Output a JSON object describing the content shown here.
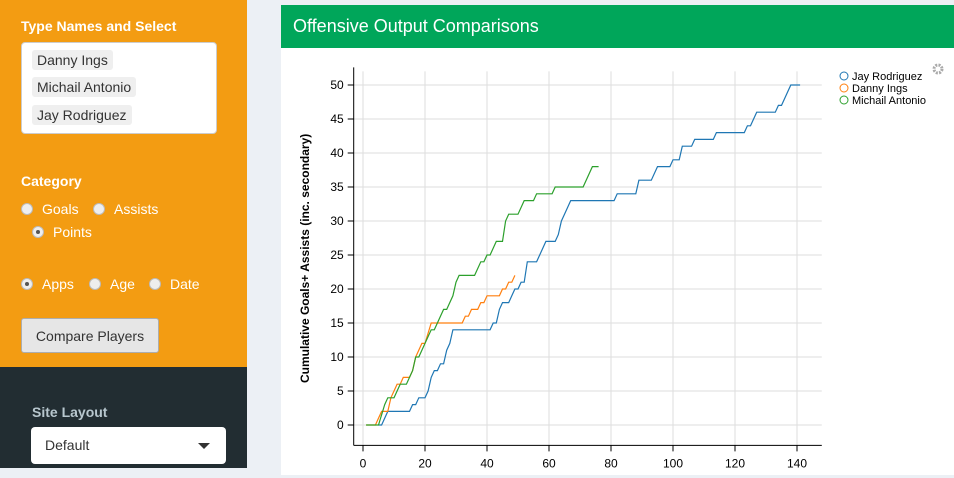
{
  "sidebar": {
    "select_label": "Type Names and Select",
    "selected_players": [
      "Danny Ings",
      "Michail Antonio",
      "Jay Rodriguez"
    ],
    "category_label": "Category",
    "category_options": [
      "Goals",
      "Assists",
      "Points"
    ],
    "category_selected": "Points",
    "axis_options": [
      "Apps",
      "Age",
      "Date"
    ],
    "axis_selected": "Apps",
    "compare_button": "Compare Players",
    "site_layout_label": "Site Layout",
    "site_layout_value": "Default"
  },
  "box": {
    "title": "Offensive Output Comparisons"
  },
  "chart_data": {
    "type": "line",
    "title": "",
    "xlabel": "",
    "ylabel": "Cumulative Goals+ Assists (inc. secondary)",
    "xlim": [
      -3,
      148
    ],
    "ylim": [
      -3,
      52
    ],
    "xticks": [
      0,
      20,
      40,
      60,
      80,
      100,
      120,
      140
    ],
    "yticks": [
      0,
      5,
      10,
      15,
      20,
      25,
      30,
      35,
      40,
      45,
      50
    ],
    "legend": "top-right",
    "series": [
      {
        "name": "Jay Rodriguez",
        "color": "#1f77b4",
        "points": [
          [
            5,
            0
          ],
          [
            6,
            0
          ],
          [
            8,
            2
          ],
          [
            15,
            2
          ],
          [
            16,
            3
          ],
          [
            17,
            3
          ],
          [
            18,
            4
          ],
          [
            20,
            4
          ],
          [
            21,
            5
          ],
          [
            22,
            7
          ],
          [
            23,
            8
          ],
          [
            24,
            8
          ],
          [
            25,
            9
          ],
          [
            26,
            9
          ],
          [
            27,
            11
          ],
          [
            28,
            12
          ],
          [
            29,
            14
          ],
          [
            41,
            14
          ],
          [
            42,
            15
          ],
          [
            43,
            15
          ],
          [
            44,
            17
          ],
          [
            45,
            18
          ],
          [
            47,
            18
          ],
          [
            48,
            19
          ],
          [
            49,
            20
          ],
          [
            50,
            20
          ],
          [
            51,
            21
          ],
          [
            52,
            21
          ],
          [
            53,
            24
          ],
          [
            56,
            24
          ],
          [
            59,
            27
          ],
          [
            62,
            27
          ],
          [
            63,
            28
          ],
          [
            64,
            30
          ],
          [
            65,
            31
          ],
          [
            67,
            33
          ],
          [
            81,
            33
          ],
          [
            82,
            34
          ],
          [
            88,
            34
          ],
          [
            89,
            36
          ],
          [
            93,
            36
          ],
          [
            95,
            38
          ],
          [
            99,
            38
          ],
          [
            100,
            39
          ],
          [
            102,
            39
          ],
          [
            103,
            41
          ],
          [
            106,
            41
          ],
          [
            107,
            42
          ],
          [
            113,
            42
          ],
          [
            114,
            43
          ],
          [
            123,
            43
          ],
          [
            124,
            44
          ],
          [
            125,
            44
          ],
          [
            127,
            46
          ],
          [
            133,
            46
          ],
          [
            134,
            47
          ],
          [
            135,
            47
          ],
          [
            138,
            50
          ],
          [
            141,
            50
          ]
        ]
      },
      {
        "name": "Danny Ings",
        "color": "#ff7f0e",
        "points": [
          [
            1,
            0
          ],
          [
            4,
            0
          ],
          [
            6,
            2
          ],
          [
            8,
            2
          ],
          [
            9,
            4
          ],
          [
            11,
            6
          ],
          [
            12,
            6
          ],
          [
            13,
            7
          ],
          [
            15,
            7
          ],
          [
            16,
            8
          ],
          [
            17,
            10
          ],
          [
            19,
            12
          ],
          [
            20,
            12
          ],
          [
            22,
            15
          ],
          [
            32,
            15
          ],
          [
            33,
            16
          ],
          [
            34,
            16
          ],
          [
            35,
            17
          ],
          [
            37,
            17
          ],
          [
            38,
            18
          ],
          [
            39,
            18
          ],
          [
            40,
            19
          ],
          [
            44,
            19
          ],
          [
            45,
            20
          ],
          [
            46,
            20
          ],
          [
            47,
            21
          ],
          [
            48,
            21
          ],
          [
            49,
            22
          ]
        ]
      },
      {
        "name": "Michail Antonio",
        "color": "#2ca02c",
        "points": [
          [
            1,
            0
          ],
          [
            5,
            0
          ],
          [
            7,
            3
          ],
          [
            8,
            4
          ],
          [
            10,
            4
          ],
          [
            12,
            6
          ],
          [
            14,
            6
          ],
          [
            16,
            8
          ],
          [
            17,
            10
          ],
          [
            18,
            10
          ],
          [
            20,
            12
          ],
          [
            22,
            14
          ],
          [
            23,
            14
          ],
          [
            26,
            17
          ],
          [
            27,
            17
          ],
          [
            29,
            19
          ],
          [
            30,
            21
          ],
          [
            31,
            22
          ],
          [
            36,
            22
          ],
          [
            38,
            24
          ],
          [
            39,
            24
          ],
          [
            40,
            25
          ],
          [
            41,
            25
          ],
          [
            43,
            27
          ],
          [
            45,
            27
          ],
          [
            46,
            30
          ],
          [
            47,
            31
          ],
          [
            50,
            31
          ],
          [
            52,
            33
          ],
          [
            55,
            33
          ],
          [
            56,
            34
          ],
          [
            61,
            34
          ],
          [
            62,
            35
          ],
          [
            71,
            35
          ],
          [
            74,
            38
          ],
          [
            76,
            38
          ]
        ]
      }
    ]
  }
}
